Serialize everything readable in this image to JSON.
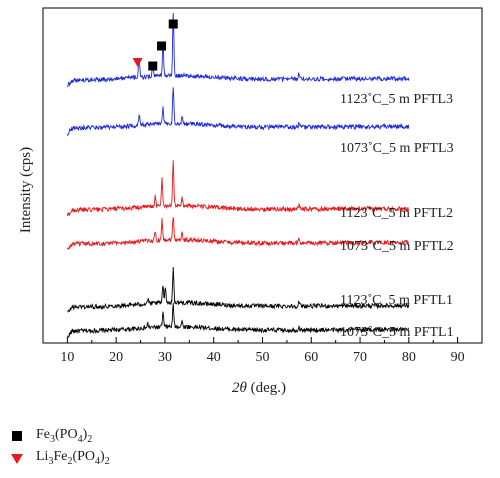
{
  "chart_data": {
    "type": "line",
    "xlabel": "2θ (deg.)",
    "ylabel": "Intensity (cps)",
    "xlim": [
      5,
      95
    ],
    "xticks": [
      10,
      20,
      30,
      40,
      50,
      60,
      70,
      80,
      90
    ],
    "x_range_measured": [
      10,
      80
    ],
    "yticks": [],
    "grid": false,
    "series": [
      {
        "name": "1073˚C_5 m PFTL1",
        "color": "#000000",
        "peaks": [
          {
            "x": 29.6,
            "y": 14
          },
          {
            "x": 31.7,
            "y": 22
          },
          {
            "x": 26.5,
            "y": 4
          },
          {
            "x": 33.5,
            "y": 5
          },
          {
            "x": 57.5,
            "y": 3
          }
        ]
      },
      {
        "name": "1123˚C_5 m PFTL1",
        "color": "#000000",
        "peaks": [
          {
            "x": 29.6,
            "y": 18
          },
          {
            "x": 30.1,
            "y": 16
          },
          {
            "x": 31.7,
            "y": 34
          },
          {
            "x": 26.5,
            "y": 5
          },
          {
            "x": 57.5,
            "y": 4
          }
        ]
      },
      {
        "name": "1073˚C_5 m PFTL2",
        "color": "#e41a1c",
        "peaks": [
          {
            "x": 29.4,
            "y": 20
          },
          {
            "x": 31.7,
            "y": 24
          },
          {
            "x": 28.0,
            "y": 8
          },
          {
            "x": 33.5,
            "y": 6
          },
          {
            "x": 57.5,
            "y": 4
          }
        ]
      },
      {
        "name": "1123˚C_5 m PFTL2",
        "color": "#e41a1c",
        "peaks": [
          {
            "x": 29.4,
            "y": 28
          },
          {
            "x": 31.7,
            "y": 44
          },
          {
            "x": 28.0,
            "y": 10
          },
          {
            "x": 33.5,
            "y": 8
          },
          {
            "x": 57.5,
            "y": 5
          }
        ]
      },
      {
        "name": "1073˚C_5 m PFTL3",
        "color": "#1f2bd6",
        "peaks": [
          {
            "x": 24.7,
            "y": 10
          },
          {
            "x": 29.6,
            "y": 18
          },
          {
            "x": 31.7,
            "y": 38
          },
          {
            "x": 33.5,
            "y": 6
          },
          {
            "x": 57.5,
            "y": 4
          }
        ]
      },
      {
        "name": "1123˚C_5 m PFTL3",
        "color": "#1f2bd6",
        "peaks": [
          {
            "x": 24.7,
            "y": 18
          },
          {
            "x": 27.5,
            "y": 10
          },
          {
            "x": 29.6,
            "y": 32
          },
          {
            "x": 31.7,
            "y": 62
          },
          {
            "x": 57.5,
            "y": 6
          }
        ]
      }
    ],
    "peak_markers": [
      {
        "symbol": "square",
        "color": "#000000",
        "x": 27.5,
        "series": "1123˚C_5 m PFTL3"
      },
      {
        "symbol": "square",
        "color": "#000000",
        "x": 29.3,
        "series": "1123˚C_5 m PFTL3"
      },
      {
        "symbol": "square",
        "color": "#000000",
        "x": 31.7,
        "series": "1123˚C_5 m PFTL3"
      },
      {
        "symbol": "triangle-down",
        "color": "#e41a1c",
        "x": 24.4,
        "series": "1123˚C_5 m PFTL3"
      }
    ],
    "legend": {
      "placement": "bottom-left",
      "entries": [
        {
          "symbol": "square",
          "color": "#000000",
          "label": "Fe",
          "sub1": "3",
          "mid": "(PO",
          "sub2": "4",
          "end": ")",
          "sub3": "2"
        },
        {
          "symbol": "triangle-down",
          "color": "#e41a1c",
          "label": "Li",
          "sub1": "3",
          "mid": "Fe",
          "sub2": "2",
          "end": "(PO",
          "sub3": "4",
          "tail": ")",
          "sub4": "2"
        }
      ]
    }
  }
}
